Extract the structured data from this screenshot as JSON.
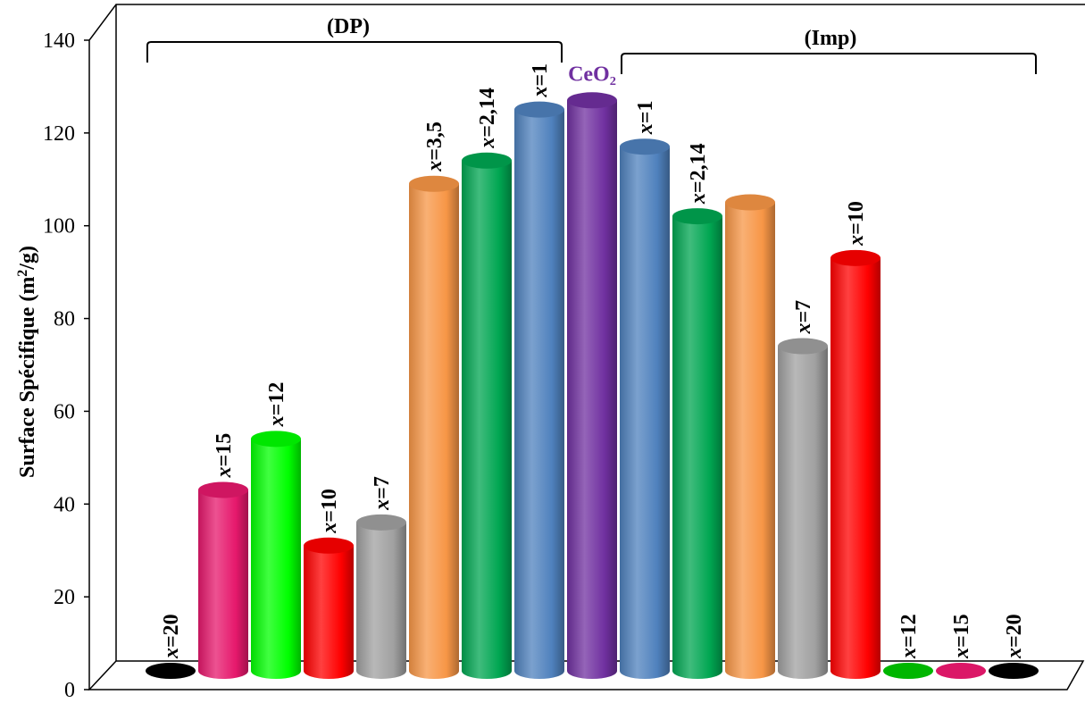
{
  "chart_data": {
    "type": "bar",
    "ylabel": "Surface Spécifique (m²/g)",
    "ylim": [
      0,
      140
    ],
    "yticks": [
      "0",
      "20",
      "40",
      "60",
      "80",
      "100",
      "120",
      "140"
    ],
    "groups": [
      {
        "name": "(DP)",
        "first_bar": 0,
        "last_bar": 7
      },
      {
        "name": "(Imp)",
        "first_bar": 9,
        "last_bar": 16
      }
    ],
    "bars": [
      {
        "var": "x",
        "label": "=20",
        "value": 0,
        "color": "#000000"
      },
      {
        "var": "x",
        "label": "=15",
        "value": 39,
        "color": "#e6186c"
      },
      {
        "var": "x",
        "label": "=12",
        "value": 50,
        "color": "#00ff00"
      },
      {
        "var": "x",
        "label": "=10",
        "value": 27,
        "color": "#ff0000"
      },
      {
        "var": "x",
        "label": "=7",
        "value": 32,
        "color": "#a0a0a0"
      },
      {
        "var": "x",
        "label": "=3,5",
        "value": 105,
        "color": "#f79646"
      },
      {
        "var": "x",
        "label": "=2,14",
        "value": 110,
        "color": "#00a651"
      },
      {
        "var": "x",
        "label": "=1",
        "value": 121,
        "color": "#4f81bd"
      },
      {
        "var": "",
        "label": "CeO₂",
        "value": 123,
        "color": "#7030a0"
      },
      {
        "var": "x",
        "label": "=1",
        "value": 113,
        "color": "#4f81bd"
      },
      {
        "var": "x",
        "label": "=2,14",
        "value": 98,
        "color": "#00a651"
      },
      {
        "var": "",
        "label": "",
        "value": 101,
        "color": "#f79646"
      },
      {
        "var": "x",
        "label": "=7",
        "value": 70,
        "color": "#a0a0a0"
      },
      {
        "var": "x",
        "label": "=10",
        "value": 89,
        "color": "#ff0000"
      },
      {
        "var": "x",
        "label": "=12",
        "value": 0,
        "color": "#00c000"
      },
      {
        "var": "x",
        "label": "=15",
        "value": 0,
        "color": "#e6186c"
      },
      {
        "var": "x",
        "label": "=20",
        "value": 0,
        "color": "#000000"
      }
    ]
  }
}
